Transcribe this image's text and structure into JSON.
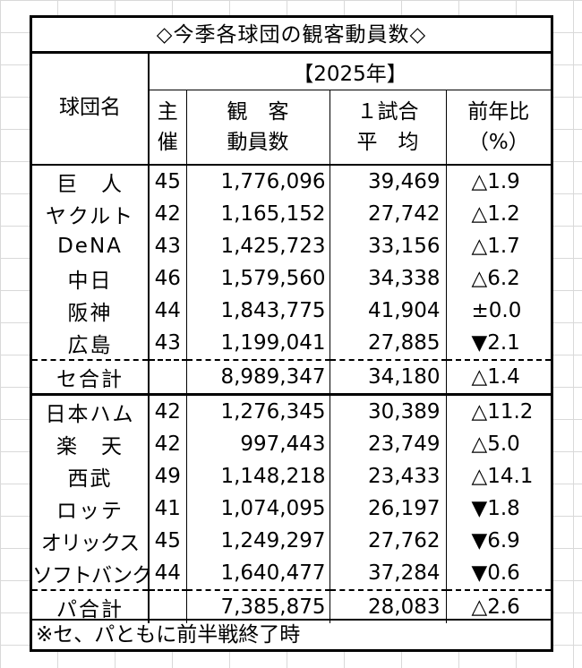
{
  "title": "◇今季各球団の観客動員数◇",
  "header": {
    "team": "球団名",
    "year": "【2025年】",
    "games": [
      "主",
      "催"
    ],
    "attendance": [
      "観　客",
      "動員数"
    ],
    "average": [
      "１試合",
      "平　均"
    ],
    "yoy": [
      "前年比",
      "（%）"
    ]
  },
  "rows": [
    {
      "team": "巨　人",
      "games": "45",
      "attendance": "1,776,096",
      "average": "39,469",
      "yoy": "△1.9"
    },
    {
      "team": "ヤクルト",
      "games": "42",
      "attendance": "1,165,152",
      "average": "27,742",
      "yoy": "△1.2"
    },
    {
      "team": "DeNA",
      "games": "43",
      "attendance": "1,425,723",
      "average": "33,156",
      "yoy": "△1.7"
    },
    {
      "team": "中日",
      "games": "46",
      "attendance": "1,579,560",
      "average": "34,338",
      "yoy": "△6.2"
    },
    {
      "team": "阪神",
      "games": "44",
      "attendance": "1,843,775",
      "average": "41,904",
      "yoy": "±0.0"
    },
    {
      "team": "広島",
      "games": "43",
      "attendance": "1,199,041",
      "average": "27,885",
      "yoy": "▼2.1"
    },
    {
      "team": "セ合計",
      "games": "",
      "attendance": "8,989,347",
      "average": "34,180",
      "yoy": "△1.4"
    },
    {
      "team": "日本ハム",
      "games": "42",
      "attendance": "1,276,345",
      "average": "30,389",
      "yoy": "△11.2"
    },
    {
      "team": "楽　天",
      "games": "42",
      "attendance": "997,443",
      "average": "23,749",
      "yoy": "△5.0"
    },
    {
      "team": "西武",
      "games": "49",
      "attendance": "1,148,218",
      "average": "23,433",
      "yoy": "△14.1"
    },
    {
      "team": "ロッテ",
      "games": "41",
      "attendance": "1,074,095",
      "average": "26,197",
      "yoy": "▼1.8"
    },
    {
      "team": "オリックス",
      "games": "45",
      "attendance": "1,249,297",
      "average": "27,762",
      "yoy": "▼6.9"
    },
    {
      "team": "ソフトバンク",
      "games": "44",
      "attendance": "1,640,477",
      "average": "37,284",
      "yoy": "▼0.6"
    },
    {
      "team": "パ合計",
      "games": "",
      "attendance": "7,385,875",
      "average": "28,083",
      "yoy": "△2.6"
    }
  ],
  "footnote": "※セ、パともに前半戦終了時"
}
